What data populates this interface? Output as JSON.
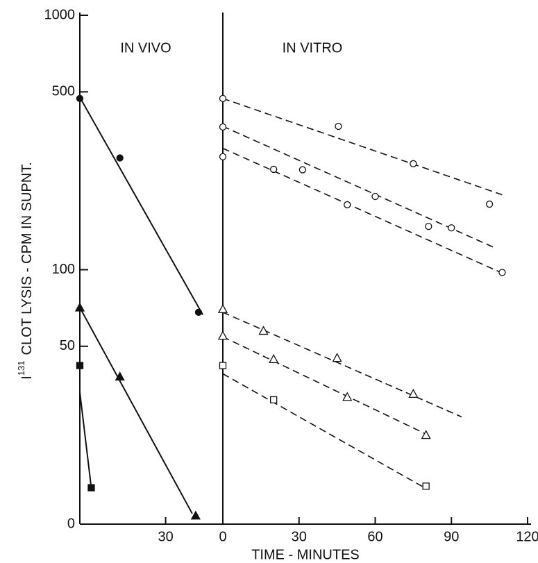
{
  "chart_data": {
    "type": "scatter",
    "y_label_symbol": "I",
    "y_label_superscript": "131",
    "y_label": "CLOT LYSIS - CPM IN SUPNT.",
    "x_label": "TIME - MINUTES",
    "ylog": true,
    "ylim": [
      10,
      1000
    ],
    "yticks": [
      {
        "value": 10,
        "label": "0"
      },
      50,
      100,
      500,
      1000
    ],
    "color": "#111111",
    "panels": [
      {
        "title": "IN VIVO",
        "xlim": [
          0,
          50
        ],
        "xticks": [
          30
        ],
        "line_style": "solid",
        "groups": [
          {
            "marker": "circle",
            "filled": true,
            "x": [
              0,
              14,
              41.5
            ],
            "values": [
              471,
              275,
              68
            ],
            "fit": {
              "x": [
                0,
                43
              ],
              "values": [
                476,
                66.5
              ]
            }
          },
          {
            "marker": "triangle",
            "filled": true,
            "x": [
              0,
              14,
              40.5
            ],
            "values": [
              71,
              38,
              10.8
            ],
            "fit": {
              "x": [
                0,
                39.3
              ],
              "values": [
                71,
                11
              ]
            }
          },
          {
            "marker": "square",
            "filled": true,
            "x": [
              0,
              4
            ],
            "values": [
              42,
              13.9
            ],
            "fit": {
              "x": [
                0,
                4
              ],
              "values": [
                33,
                13.9
              ]
            }
          }
        ]
      },
      {
        "title": "IN VITRO",
        "xlim": [
          0,
          120
        ],
        "xticks": [
          0,
          30,
          60,
          90,
          120
        ],
        "line_style": "dashed",
        "groups": [
          {
            "marker": "circle",
            "filled": false,
            "x": [
              0,
              45.5,
              75,
              105
            ],
            "values": [
              471,
              366,
              261,
              181
            ],
            "fit": {
              "x": [
                0,
                110
              ],
              "values": [
                471,
                197
              ]
            }
          },
          {
            "marker": "circle",
            "filled": false,
            "x": [
              0,
              60,
              90
            ],
            "values": [
              364,
              194,
              146
            ],
            "fit": {
              "x": [
                0,
                107
              ],
              "values": [
                366,
                122
              ]
            }
          },
          {
            "marker": "circle",
            "filled": false,
            "x": [
              0,
              20,
              31.4,
              49,
              81,
              110
            ],
            "values": [
              278,
              248,
              247,
              180,
              148,
              97.5
            ],
            "fit": {
              "x": [
                0,
                110
              ],
              "values": [
                300,
                97
              ]
            }
          },
          {
            "marker": "triangle",
            "filled": false,
            "x": [
              0,
              16,
              45,
              75
            ],
            "values": [
              70,
              57.5,
              45,
              32.5
            ],
            "fit": {
              "x": [
                0,
                94
              ],
              "values": [
                68,
                26.4
              ]
            }
          },
          {
            "marker": "triangle",
            "filled": false,
            "x": [
              0,
              20,
              49,
              80
            ],
            "values": [
              55,
              44.5,
              31.6,
              22.4
            ],
            "fit": {
              "x": [
                0,
                80
              ],
              "values": [
                54.5,
                22.6
              ]
            }
          },
          {
            "marker": "square",
            "filled": false,
            "x": [
              0,
              20,
              80
            ],
            "values": [
              42,
              30.8,
              14.1
            ],
            "fit": {
              "x": [
                0,
                80
              ],
              "values": [
                39,
                13.8
              ]
            }
          }
        ]
      }
    ]
  }
}
